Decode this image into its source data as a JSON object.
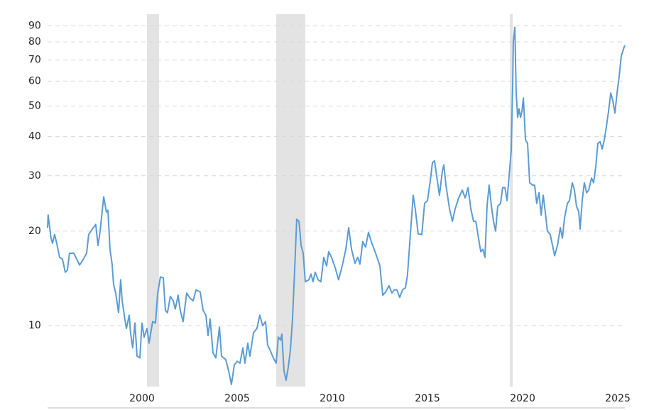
{
  "chart_data": {
    "type": "line",
    "log_y": true,
    "grid": true,
    "color": "#5b9bd5",
    "band_color": "#e3e3e3",
    "shaded_ranges": [
      [
        2000.26,
        2000.9
      ],
      [
        2007.05,
        2008.58
      ],
      [
        2019.33,
        2019.48
      ]
    ],
    "xlim": [
      1995.04,
      2025.37
    ],
    "xticks": [
      2000,
      2005,
      2010,
      2015,
      2020,
      2025
    ],
    "ylim": [
      6.4,
      98
    ],
    "yticks": [
      10,
      20,
      30,
      40,
      50,
      60,
      70,
      80,
      90
    ],
    "x": [
      1995.04,
      1995.07,
      1995.22,
      1995.3,
      1995.41,
      1995.52,
      1995.67,
      1995.82,
      1995.97,
      1996.08,
      1996.19,
      1996.42,
      1996.57,
      1996.72,
      1996.9,
      1997.09,
      1997.2,
      1997.39,
      1997.57,
      1997.69,
      1997.8,
      1997.99,
      1998.13,
      1998.21,
      1998.32,
      1998.43,
      1998.51,
      1998.62,
      1998.77,
      1998.88,
      1998.96,
      1999.1,
      1999.18,
      1999.33,
      1999.4,
      1999.51,
      1999.63,
      1999.74,
      1999.89,
      2000.0,
      2000.11,
      2000.26,
      2000.37,
      2000.56,
      2000.71,
      2000.82,
      2000.97,
      2001.12,
      2001.23,
      2001.34,
      2001.49,
      2001.64,
      2001.75,
      2001.9,
      2002.01,
      2002.16,
      2002.35,
      2002.54,
      2002.69,
      2002.84,
      2003.06,
      2003.21,
      2003.36,
      2003.47,
      2003.58,
      2003.73,
      2003.88,
      2004.07,
      2004.18,
      2004.4,
      2004.55,
      2004.7,
      2004.85,
      2005.0,
      2005.15,
      2005.3,
      2005.41,
      2005.56,
      2005.67,
      2005.86,
      2006.04,
      2006.19,
      2006.34,
      2006.49,
      2006.6,
      2006.75,
      2006.9,
      2007.05,
      2007.16,
      2007.28,
      2007.35,
      2007.46,
      2007.57,
      2007.69,
      2007.8,
      2007.91,
      2008.02,
      2008.13,
      2008.25,
      2008.36,
      2008.47,
      2008.58,
      2008.77,
      2008.88,
      2008.99,
      2009.1,
      2009.25,
      2009.4,
      2009.55,
      2009.7,
      2009.81,
      2009.96,
      2010.15,
      2010.33,
      2010.52,
      2010.71,
      2010.86,
      2011.01,
      2011.19,
      2011.34,
      2011.45,
      2011.6,
      2011.75,
      2011.9,
      2012.05,
      2012.2,
      2012.35,
      2012.5,
      2012.65,
      2012.8,
      2012.98,
      2013.13,
      2013.25,
      2013.39,
      2013.54,
      2013.69,
      2013.84,
      2013.95,
      2014.1,
      2014.25,
      2014.36,
      2014.51,
      2014.7,
      2014.85,
      2015.0,
      2015.15,
      2015.26,
      2015.37,
      2015.48,
      2015.63,
      2015.78,
      2015.86,
      2015.97,
      2016.16,
      2016.31,
      2016.45,
      2016.64,
      2016.83,
      2016.98,
      2017.13,
      2017.28,
      2017.42,
      2017.54,
      2017.65,
      2017.8,
      2017.91,
      2018.02,
      2018.13,
      2018.24,
      2018.36,
      2018.47,
      2018.58,
      2018.69,
      2018.84,
      2018.95,
      2019.07,
      2019.18,
      2019.29,
      2019.4,
      2019.48,
      2019.51,
      2019.59,
      2019.66,
      2019.74,
      2019.81,
      2019.89,
      2019.96,
      2020.04,
      2020.15,
      2020.26,
      2020.37,
      2020.52,
      2020.63,
      2020.74,
      2020.86,
      2020.97,
      2021.08,
      2021.19,
      2021.3,
      2021.45,
      2021.57,
      2021.68,
      2021.83,
      2021.98,
      2022.09,
      2022.2,
      2022.35,
      2022.46,
      2022.61,
      2022.72,
      2022.83,
      2022.95,
      2023.02,
      2023.13,
      2023.24,
      2023.36,
      2023.47,
      2023.62,
      2023.73,
      2023.84,
      2023.95,
      2024.07,
      2024.18,
      2024.29,
      2024.4,
      2024.51,
      2024.63,
      2024.74,
      2024.85,
      2024.96,
      2025.07,
      2025.18,
      2025.3,
      2025.37
    ],
    "values": [
      20.5,
      22.5,
      19,
      18.3,
      19.5,
      18.3,
      16.5,
      16.3,
      14.8,
      15,
      17,
      17,
      16.3,
      15.6,
      16.2,
      17,
      19.5,
      20.3,
      21,
      18,
      20,
      25.7,
      23,
      23.3,
      17.5,
      15.7,
      13.5,
      12.7,
      11,
      14,
      12,
      10.5,
      9.8,
      10.8,
      9.5,
      8.5,
      10.2,
      8,
      7.9,
      10.2,
      9.2,
      9.8,
      8.8,
      10.3,
      10.2,
      12.6,
      14.3,
      14.2,
      11.2,
      11,
      12.4,
      12,
      11.3,
      12.5,
      11.2,
      10.3,
      12.7,
      12.2,
      12,
      13,
      12.8,
      11.2,
      10.8,
      9.3,
      10.5,
      8.2,
      7.9,
      9.9,
      8,
      7.8,
      7.2,
      6.5,
      7.5,
      7.7,
      7.6,
      8.5,
      7.6,
      8.8,
      8,
      9.5,
      9.8,
      10.8,
      10,
      10.3,
      8.7,
      8.3,
      7.9,
      7.6,
      9.2,
      9,
      9.4,
      7.2,
      6.7,
      7.4,
      8.4,
      10.5,
      15,
      21.8,
      21.5,
      18,
      17,
      13.8,
      14,
      14.6,
      13.8,
      14.8,
      14,
      13.8,
      16.5,
      15.5,
      17.2,
      16.5,
      15.3,
      14,
      15.5,
      17.5,
      20.5,
      17.5,
      15.8,
      16.5,
      15.7,
      18.5,
      17.8,
      19.8,
      18.5,
      17.5,
      16.5,
      15.5,
      12.5,
      12.8,
      13.4,
      12.7,
      13,
      13,
      12.3,
      13,
      13.2,
      14.5,
      19.5,
      26,
      23.5,
      19.6,
      19.5,
      24.5,
      25,
      29,
      33,
      33.5,
      30,
      26,
      31,
      32.5,
      28,
      23.5,
      21.5,
      23.5,
      25.5,
      27,
      25.5,
      27.5,
      23.5,
      21.5,
      21.5,
      19.5,
      17.2,
      17.5,
      16.5,
      24,
      28,
      24,
      21.5,
      20,
      24,
      24.5,
      27.5,
      27.5,
      25,
      30,
      36,
      60,
      80,
      89,
      55,
      46,
      49,
      46,
      48,
      53,
      39,
      38,
      28.5,
      28,
      28,
      24.5,
      26.5,
      22.5,
      26,
      23,
      20,
      19.5,
      18,
      16.7,
      18,
      20.5,
      19,
      22,
      24.5,
      25,
      28.5,
      27,
      24,
      23,
      20.3,
      25,
      28.5,
      26.5,
      27,
      29.5,
      28.5,
      32,
      38,
      38.5,
      36.5,
      39,
      43,
      48,
      55,
      52,
      47.5,
      55,
      62,
      72,
      76,
      78
    ]
  }
}
